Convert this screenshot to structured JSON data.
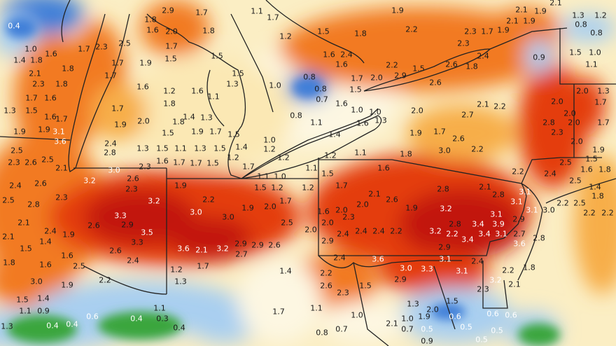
{
  "map": {
    "colors": {
      "dark_red": "#c2180e",
      "red": "#e43c10",
      "orange": "#f27a20",
      "light_orange": "#f7ae4a",
      "cream": "#fbe8b4",
      "pale": "#fdf7e2",
      "light_blue": "#a9cff0",
      "blue": "#3f7fd8",
      "green": "#3aa63c"
    },
    "labels": [
      "0.4",
      "1.0",
      "1.4",
      "1.6",
      "1.8",
      "2.1",
      "2.3",
      "1.8",
      "1.8",
      "1.3",
      "1.7",
      "1.6",
      "1.5",
      "1.6",
      "1.7",
      "1.9",
      "1.9",
      "3.1",
      "3.6",
      "2.5",
      "2.3",
      "2.6",
      "2.5",
      "2.1",
      "2.4",
      "2.6",
      "2.5",
      "2.8",
      "2.3",
      "2.1",
      "2.4",
      "1.9",
      "2.1",
      "1.5",
      "1.4",
      "1.8",
      "1.6",
      "2.5",
      "1.6",
      "3.0",
      "1.9",
      "2.2",
      "1.5",
      "1.4",
      "1.1",
      "0.9",
      "1.3",
      "0.4",
      "0.4",
      "0.6",
      "0.4",
      "0.3",
      "0.4",
      "1.1",
      "1.7",
      "2.3",
      "2.5",
      "1.7",
      "1.9",
      "1.7",
      "1.6",
      "2.0",
      "1.6",
      "1.7",
      "1.5",
      "1.8",
      "2.9",
      "1.7",
      "1.8",
      "1.5",
      "1.5",
      "1.3",
      "1.6",
      "1.1",
      "1.2",
      "1.8",
      "1.7",
      "2.0",
      "1.4",
      "1.3",
      "1.5",
      "1.8",
      "1.9",
      "1.7",
      "1.5",
      "1.9",
      "2.4",
      "1.3",
      "1.5",
      "1.1",
      "1.3",
      "1.5",
      "1.4",
      "2.8",
      "1.6",
      "1.7",
      "1.7",
      "1.5",
      "1.2",
      "1.7",
      "2.3",
      "3.0",
      "3.2",
      "2.6",
      "2.3",
      "1.9",
      "2.2",
      "3.2",
      "3.3",
      "2.9",
      "3.5",
      "3.3",
      "2.6",
      "3.0",
      "3.0",
      "1.9",
      "2.0",
      "1.7",
      "2.5",
      "3.6",
      "2.1",
      "3.2",
      "2.9",
      "2.9",
      "2.7",
      "2.6",
      "2.6",
      "2.4",
      "1.2",
      "1.7",
      "1.3",
      "1.4",
      "1.1",
      "1.7",
      "1.2",
      "1.5",
      "1.8",
      "1.6",
      "2.4",
      "1.6",
      "0.8",
      "0.8",
      "0.7",
      "1.0",
      "0.8",
      "1.7",
      "2.0",
      "1.5",
      "1.6",
      "1.0",
      "1.0",
      "1.1",
      "1.4",
      "1.6",
      "1.3",
      "1.0",
      "1.2",
      "1.2",
      "1.1",
      "1.1",
      "1.2",
      "1.1",
      "1.0",
      "1.5",
      "1.2",
      "1.2",
      "1.5",
      "1.7",
      "2.1",
      "1.6",
      "2.0",
      "2.3",
      "2.4",
      "2.4",
      "2.4",
      "2.2",
      "1.6",
      "2.0",
      "2.0",
      "2.0",
      "2.9",
      "2.6",
      "1.9",
      "2.4",
      "2.2",
      "2.6",
      "2.3",
      "1.5",
      "3.6",
      "3.0",
      "2.9",
      "3.3",
      "3.1",
      "3.1",
      "2.4",
      "1.7",
      "1.1",
      "0.8",
      "0.7",
      "1.0",
      "2.1",
      "1.0",
      "0.7",
      "1.9",
      "0.5",
      "2.0",
      "1.3",
      "1.5",
      "0.6",
      "0.5",
      "0.6",
      "0.6",
      "0.5",
      "0.5",
      "0.9",
      "1.9",
      "2.2",
      "2.2",
      "2.9",
      "1.5",
      "2.6",
      "2.6",
      "1.8",
      "2.4",
      "2.3",
      "2.3",
      "1.7",
      "1.9",
      "2.1",
      "1.9",
      "2.1",
      "1.9",
      "2.1",
      "1.3",
      "0.8",
      "1.2",
      "0.8",
      "0.9",
      "1.5",
      "1.0",
      "1.1",
      "2.0",
      "1.3",
      "1.7",
      "2.0",
      "2.0",
      "2.8",
      "2.3",
      "2.0",
      "1.7",
      "2.0",
      "1.9",
      "1.5",
      "1.6",
      "1.8",
      "2.4",
      "2.5",
      "2.5",
      "1.4",
      "1.8",
      "2.5",
      "2.2",
      "2.2",
      "2.2",
      "2.0",
      "2.1",
      "2.7",
      "2.2",
      "1.7",
      "1.9",
      "2.6",
      "3.0",
      "2.2",
      "1.8",
      "2.2",
      "2.8",
      "2.1",
      "2.8",
      "3.2",
      "3.1",
      "3.1",
      "3.1",
      "3.0",
      "2.9",
      "3.1",
      "3.4",
      "3.9",
      "2.8",
      "3.2",
      "2.2",
      "3.4",
      "3.4",
      "3.1",
      "3.6",
      "2.7",
      "2.8",
      "2.9",
      "2.2",
      "3.2",
      "2.3",
      "2.1",
      "1.8"
    ]
  }
}
